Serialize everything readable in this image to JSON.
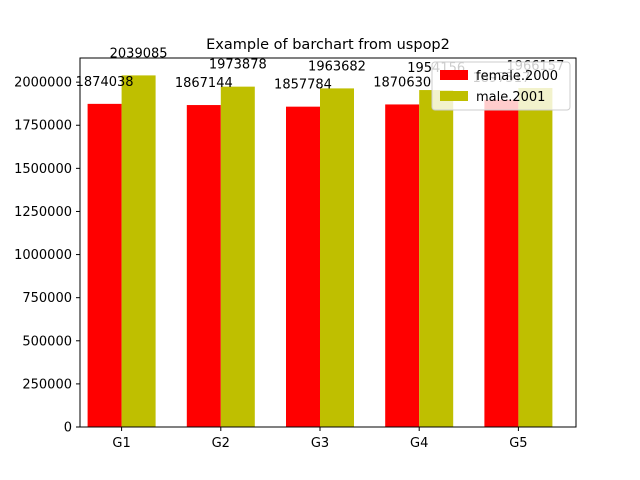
{
  "chart_data": {
    "type": "bar",
    "title": "Example of barchart from uspop2",
    "xlabel": "",
    "ylabel": "",
    "categories": [
      "G1",
      "G2",
      "G3",
      "G4",
      "G5"
    ],
    "series": [
      {
        "name": "female.2000",
        "color": "#ff0000",
        "values": [
          1874038,
          1867144,
          1857784,
          1870630,
          1897517
        ]
      },
      {
        "name": "male.2001",
        "color": "#bfbf00",
        "values": [
          2039085,
          1973878,
          1963682,
          1954156,
          1966157
        ]
      }
    ],
    "ylim": [
      0,
      2140000
    ],
    "yticks": [
      0,
      250000,
      500000,
      750000,
      1000000,
      1250000,
      1500000,
      1750000,
      2000000
    ],
    "ytick_labels": [
      "0",
      "250000",
      "500000",
      "750000",
      "1000000",
      "1250000",
      "1500000",
      "1750000",
      "2000000"
    ],
    "grid": false,
    "legend_position": "top-right",
    "show_data_labels": true
  }
}
